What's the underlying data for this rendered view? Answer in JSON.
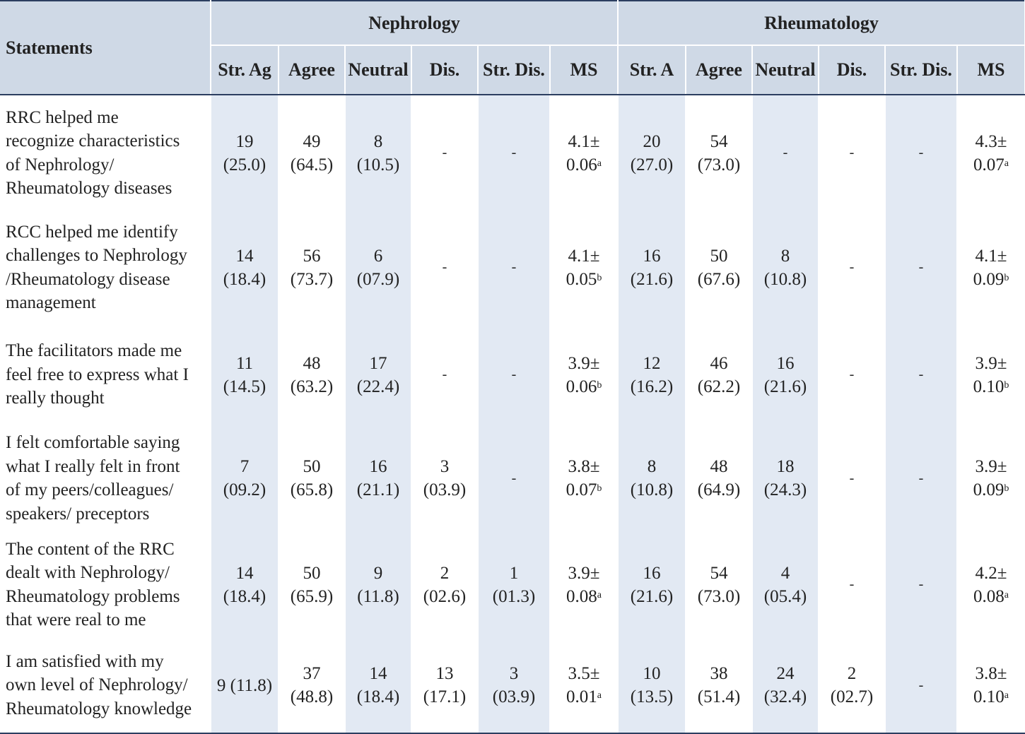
{
  "header": {
    "statements": "Statements",
    "groups": [
      "Nephrology",
      "Rheumatology"
    ],
    "nephrology_columns": [
      "Str. Ag",
      "Agree",
      "Neutral",
      "Dis.",
      "Str. Dis.",
      "MS"
    ],
    "rheumatology_columns": [
      "Str. A",
      "Agree",
      "Neutral",
      "Dis.",
      "Str. Dis.",
      "MS"
    ]
  },
  "rows": [
    {
      "statement": [
        "RRC helped me",
        "recognize characteristics",
        "of Nephrology/",
        "Rheumatology diseases"
      ],
      "cells": [
        [
          "19",
          "(25.0)"
        ],
        [
          "49",
          "(64.5)"
        ],
        [
          "8",
          "(10.5)"
        ],
        [
          "-"
        ],
        [
          "-"
        ],
        [
          "4.1±",
          "0.06"
        ],
        [
          "20",
          "(27.0)"
        ],
        [
          "54",
          "(73.0)"
        ],
        [
          "-"
        ],
        [
          "-"
        ],
        [
          "-"
        ],
        [
          "4.3±",
          "0.07"
        ]
      ],
      "neph_ms_sup": "a",
      "rheu_ms_sup": "a"
    },
    {
      "statement": [
        "RCC helped me identify",
        "challenges to Nephrology",
        "/Rheumatology disease",
        "management"
      ],
      "cells": [
        [
          "14",
          "(18.4)"
        ],
        [
          "56",
          "(73.7)"
        ],
        [
          "6",
          "(07.9)"
        ],
        [
          "-"
        ],
        [
          "-"
        ],
        [
          "4.1±",
          "0.05"
        ],
        [
          "16",
          "(21.6)"
        ],
        [
          "50",
          "(67.6)"
        ],
        [
          "8",
          "(10.8)"
        ],
        [
          "-"
        ],
        [
          "-"
        ],
        [
          "4.1±",
          "0.09"
        ]
      ],
      "neph_ms_sup": "b",
      "rheu_ms_sup": "b"
    },
    {
      "statement": [
        "The facilitators made me",
        "feel free to express what I",
        "really thought"
      ],
      "cells": [
        [
          "11",
          "(14.5)"
        ],
        [
          "48",
          "(63.2)"
        ],
        [
          "17",
          "(22.4)"
        ],
        [
          "-"
        ],
        [
          "-"
        ],
        [
          "3.9±",
          "0.06"
        ],
        [
          "12",
          "(16.2)"
        ],
        [
          "46",
          "(62.2)"
        ],
        [
          "16",
          "(21.6)"
        ],
        [
          "-"
        ],
        [
          "-"
        ],
        [
          "3.9±",
          "0.10"
        ]
      ],
      "neph_ms_sup": "b",
      "rheu_ms_sup": "b"
    },
    {
      "statement": [
        "I felt comfortable saying",
        "what I really felt in front",
        "of my peers/colleagues/",
        "speakers/ preceptors"
      ],
      "cells": [
        [
          "7",
          "(09.2)"
        ],
        [
          "50",
          "(65.8)"
        ],
        [
          "16",
          "(21.1)"
        ],
        [
          "3",
          "(03.9)"
        ],
        [
          "-"
        ],
        [
          "3.8±",
          "0.07"
        ],
        [
          "8",
          "(10.8)"
        ],
        [
          "48",
          "(64.9)"
        ],
        [
          "18",
          "(24.3)"
        ],
        [
          "-"
        ],
        [
          "-"
        ],
        [
          "3.9±",
          "0.09"
        ]
      ],
      "neph_ms_sup": "b",
      "rheu_ms_sup": "b"
    },
    {
      "statement": [
        "The content of the RRC",
        "dealt with Nephrology/",
        "Rheumatology problems",
        "that were real to me"
      ],
      "cells": [
        [
          "14",
          "(18.4)"
        ],
        [
          "50",
          "(65.9)"
        ],
        [
          "9",
          "(11.8)"
        ],
        [
          "2",
          "(02.6)"
        ],
        [
          "1",
          "(01.3)"
        ],
        [
          "3.9±",
          "0.08"
        ],
        [
          "16",
          "(21.6)"
        ],
        [
          "54",
          "(73.0)"
        ],
        [
          "4",
          "(05.4)"
        ],
        [
          "-"
        ],
        [
          "-"
        ],
        [
          "4.2±",
          "0.08"
        ]
      ],
      "neph_ms_sup": "a",
      "rheu_ms_sup": "a"
    },
    {
      "statement": [
        "I am satisfied with my",
        "own level of Nephrology/",
        "Rheumatology knowledge"
      ],
      "cells": [
        [
          "9 (11.8)"
        ],
        [
          "37",
          "(48.8)"
        ],
        [
          "14",
          "(18.4)"
        ],
        [
          "13",
          "(17.1)"
        ],
        [
          "3",
          "(03.9)"
        ],
        [
          "3.5±",
          "0.01"
        ],
        [
          "10",
          "(13.5)"
        ],
        [
          "38",
          "(51.4)"
        ],
        [
          "24",
          "(32.4)"
        ],
        [
          "2",
          "(02.7)"
        ],
        [
          "-"
        ],
        [
          "3.8±",
          "0.10"
        ]
      ],
      "neph_ms_sup": "a",
      "rheu_ms_sup": "a"
    }
  ]
}
